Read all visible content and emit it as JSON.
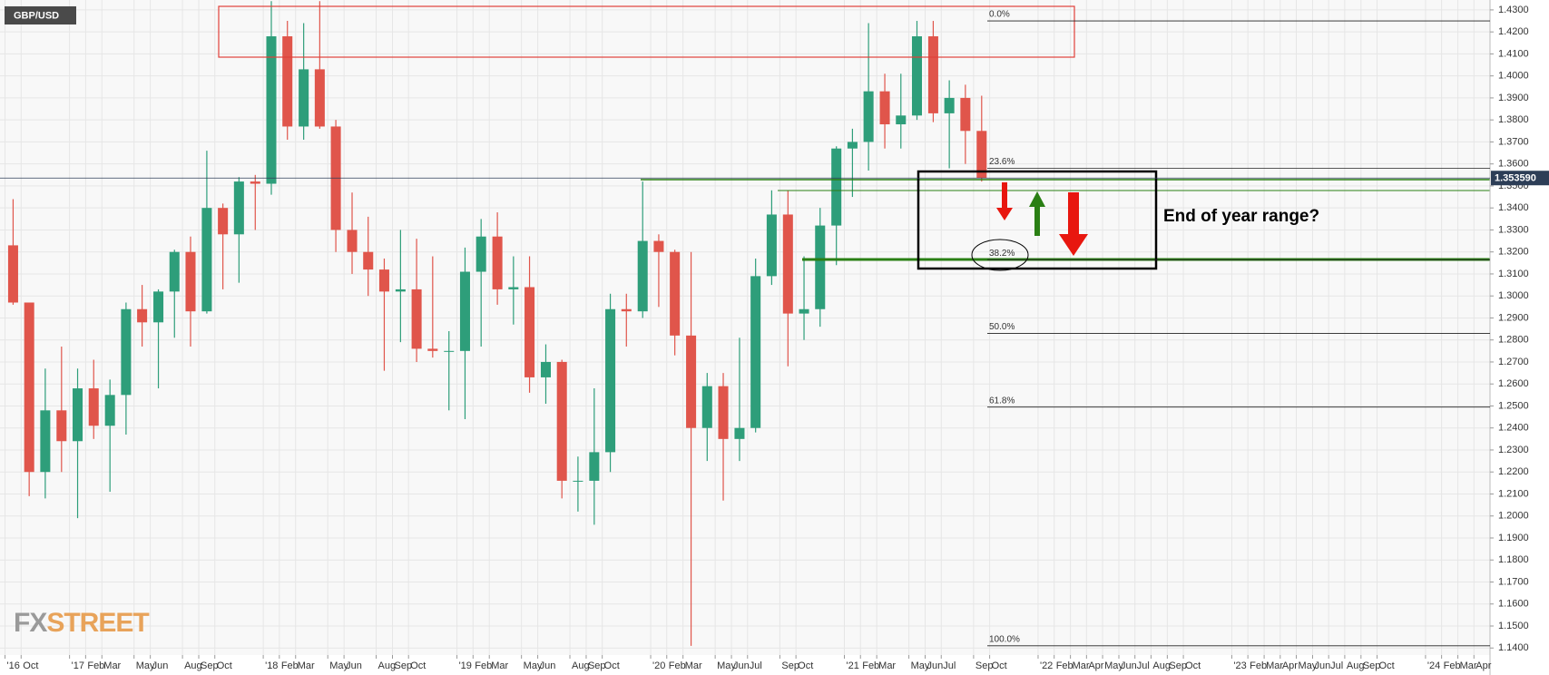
{
  "chart_data": {
    "type": "candlestick",
    "symbol": "GBP/USD",
    "annotation": "End of year range?",
    "logo": {
      "fx": "FX",
      "street": "STREET"
    },
    "up_color": "#2e9e7a",
    "down_color": "#e0554b",
    "grid": true,
    "xlim": [
      2016.641,
      2024.333
    ],
    "ylim": [
      1.1368,
      1.4345
    ],
    "x": [
      2016.667,
      2016.75,
      2016.833,
      2016.917,
      2017.0,
      2017.083,
      2017.167,
      2017.25,
      2017.333,
      2017.417,
      2017.5,
      2017.583,
      2017.667,
      2017.75,
      2017.833,
      2017.917,
      2018.0,
      2018.083,
      2018.167,
      2018.25,
      2018.333,
      2018.417,
      2018.5,
      2018.583,
      2018.667,
      2018.75,
      2018.833,
      2018.917,
      2019.0,
      2019.083,
      2019.167,
      2019.25,
      2019.333,
      2019.417,
      2019.5,
      2019.583,
      2019.667,
      2019.75,
      2019.833,
      2019.917,
      2020.0,
      2020.083,
      2020.167,
      2020.25,
      2020.333,
      2020.417,
      2020.5,
      2020.583,
      2020.667,
      2020.75,
      2020.833,
      2020.917,
      2021.0,
      2021.083,
      2021.167,
      2021.25,
      2021.333,
      2021.417,
      2021.5,
      2021.583,
      2021.667
    ],
    "open": [
      1.323,
      1.297,
      1.22,
      1.248,
      1.234,
      1.258,
      1.241,
      1.255,
      1.294,
      1.288,
      1.302,
      1.32,
      1.293,
      1.34,
      1.328,
      1.352,
      1.351,
      1.418,
      1.377,
      1.403,
      1.377,
      1.33,
      1.32,
      1.312,
      1.302,
      1.303,
      1.276,
      1.275,
      1.275,
      1.311,
      1.327,
      1.303,
      1.304,
      1.263,
      1.27,
      1.216,
      1.216,
      1.229,
      1.294,
      1.293,
      1.325,
      1.32,
      1.282,
      1.24,
      1.259,
      1.235,
      1.24,
      1.309,
      1.337,
      1.292,
      1.294,
      1.332,
      1.367,
      1.37,
      1.393,
      1.378,
      1.382,
      1.418,
      1.383,
      1.39,
      1.375
    ],
    "high": [
      1.344,
      1.297,
      1.267,
      1.277,
      1.267,
      1.271,
      1.262,
      1.297,
      1.305,
      1.303,
      1.321,
      1.327,
      1.366,
      1.342,
      1.354,
      1.355,
      1.434,
      1.425,
      1.424,
      1.434,
      1.38,
      1.347,
      1.336,
      1.317,
      1.33,
      1.326,
      1.318,
      1.284,
      1.322,
      1.335,
      1.338,
      1.318,
      1.318,
      1.278,
      1.271,
      1.227,
      1.258,
      1.301,
      1.301,
      1.352,
      1.328,
      1.321,
      1.32,
      1.265,
      1.265,
      1.281,
      1.317,
      1.348,
      1.348,
      1.318,
      1.34,
      1.368,
      1.376,
      1.424,
      1.401,
      1.401,
      1.425,
      1.425,
      1.398,
      1.396,
      1.391
    ],
    "low": [
      1.296,
      1.209,
      1.208,
      1.22,
      1.199,
      1.235,
      1.211,
      1.237,
      1.277,
      1.258,
      1.281,
      1.277,
      1.292,
      1.303,
      1.306,
      1.33,
      1.346,
      1.371,
      1.371,
      1.376,
      1.32,
      1.31,
      1.3,
      1.266,
      1.279,
      1.27,
      1.272,
      1.248,
      1.244,
      1.277,
      1.296,
      1.287,
      1.256,
      1.251,
      1.208,
      1.202,
      1.196,
      1.22,
      1.277,
      1.29,
      1.295,
      1.273,
      1.141,
      1.225,
      1.207,
      1.225,
      1.238,
      1.305,
      1.268,
      1.28,
      1.286,
      1.314,
      1.345,
      1.357,
      1.367,
      1.367,
      1.38,
      1.379,
      1.358,
      1.36,
      1.352
    ],
    "close": [
      1.297,
      1.22,
      1.248,
      1.234,
      1.258,
      1.241,
      1.255,
      1.294,
      1.288,
      1.302,
      1.32,
      1.293,
      1.34,
      1.328,
      1.352,
      1.351,
      1.418,
      1.377,
      1.403,
      1.377,
      1.33,
      1.32,
      1.312,
      1.302,
      1.303,
      1.276,
      1.275,
      1.275,
      1.311,
      1.327,
      1.303,
      1.304,
      1.263,
      1.27,
      1.216,
      1.216,
      1.229,
      1.294,
      1.293,
      1.325,
      1.32,
      1.282,
      1.24,
      1.259,
      1.235,
      1.24,
      1.309,
      1.337,
      1.292,
      1.294,
      1.332,
      1.367,
      1.37,
      1.393,
      1.378,
      1.382,
      1.418,
      1.383,
      1.39,
      1.375,
      1.35359
    ],
    "last_price": {
      "value": 1.35359,
      "label": "1.353590"
    },
    "fib_levels": [
      {
        "value": 1.425,
        "label": "0.0%"
      },
      {
        "value": 1.358,
        "label": "23.6%"
      },
      {
        "value": 1.3165,
        "label": "38.2%"
      },
      {
        "value": 1.283,
        "label": "50.0%"
      },
      {
        "value": 1.2495,
        "label": "61.8%"
      },
      {
        "value": 1.141,
        "label": "100.0%"
      }
    ],
    "yticks": [
      {
        "value": 1.43,
        "label": "1.4300"
      },
      {
        "value": 1.42,
        "label": "1.4200"
      },
      {
        "value": 1.41,
        "label": "1.4100"
      },
      {
        "value": 1.4,
        "label": "1.4000"
      },
      {
        "value": 1.39,
        "label": "1.3900"
      },
      {
        "value": 1.38,
        "label": "1.3800"
      },
      {
        "value": 1.37,
        "label": "1.3700"
      },
      {
        "value": 1.36,
        "label": "1.3600"
      },
      {
        "value": 1.35,
        "label": "1.3500"
      },
      {
        "value": 1.34,
        "label": "1.3400"
      },
      {
        "value": 1.33,
        "label": "1.3300"
      },
      {
        "value": 1.32,
        "label": "1.3200"
      },
      {
        "value": 1.31,
        "label": "1.3100"
      },
      {
        "value": 1.3,
        "label": "1.3000"
      },
      {
        "value": 1.29,
        "label": "1.2900"
      },
      {
        "value": 1.28,
        "label": "1.2800"
      },
      {
        "value": 1.27,
        "label": "1.2700"
      },
      {
        "value": 1.26,
        "label": "1.2600"
      },
      {
        "value": 1.25,
        "label": "1.2500"
      },
      {
        "value": 1.24,
        "label": "1.2400"
      },
      {
        "value": 1.23,
        "label": "1.2300"
      },
      {
        "value": 1.22,
        "label": "1.2200"
      },
      {
        "value": 1.21,
        "label": "1.2100"
      },
      {
        "value": 1.2,
        "label": "1.2000"
      },
      {
        "value": 1.19,
        "label": "1.1900"
      },
      {
        "value": 1.18,
        "label": "1.1800"
      },
      {
        "value": 1.17,
        "label": "1.1700"
      },
      {
        "value": 1.16,
        "label": "1.1600"
      },
      {
        "value": 1.15,
        "label": "1.1500"
      },
      {
        "value": 1.14,
        "label": "1.1400"
      }
    ],
    "xticks": [
      {
        "value": 2016.667,
        "label": "'16"
      },
      {
        "value": 2016.75,
        "label": "Oct"
      },
      {
        "value": 2017.0,
        "label": "'17"
      },
      {
        "value": 2017.083,
        "label": "Feb"
      },
      {
        "value": 2017.167,
        "label": "Mar"
      },
      {
        "value": 2017.333,
        "label": "May"
      },
      {
        "value": 2017.417,
        "label": "Jun"
      },
      {
        "value": 2017.583,
        "label": "Aug"
      },
      {
        "value": 2017.667,
        "label": "Sep"
      },
      {
        "value": 2017.75,
        "label": "Oct"
      },
      {
        "value": 2018.0,
        "label": "'18"
      },
      {
        "value": 2018.083,
        "label": "Feb"
      },
      {
        "value": 2018.167,
        "label": "Mar"
      },
      {
        "value": 2018.333,
        "label": "May"
      },
      {
        "value": 2018.417,
        "label": "Jun"
      },
      {
        "value": 2018.583,
        "label": "Aug"
      },
      {
        "value": 2018.667,
        "label": "Sep"
      },
      {
        "value": 2018.75,
        "label": "Oct"
      },
      {
        "value": 2019.0,
        "label": "'19"
      },
      {
        "value": 2019.083,
        "label": "Feb"
      },
      {
        "value": 2019.167,
        "label": "Mar"
      },
      {
        "value": 2019.333,
        "label": "May"
      },
      {
        "value": 2019.417,
        "label": "Jun"
      },
      {
        "value": 2019.583,
        "label": "Aug"
      },
      {
        "value": 2019.667,
        "label": "Sep"
      },
      {
        "value": 2019.75,
        "label": "Oct"
      },
      {
        "value": 2020.0,
        "label": "'20"
      },
      {
        "value": 2020.083,
        "label": "Feb"
      },
      {
        "value": 2020.167,
        "label": "Mar"
      },
      {
        "value": 2020.333,
        "label": "May"
      },
      {
        "value": 2020.417,
        "label": "Jun"
      },
      {
        "value": 2020.5,
        "label": "Jul"
      },
      {
        "value": 2020.667,
        "label": "Sep"
      },
      {
        "value": 2020.75,
        "label": "Oct"
      },
      {
        "value": 2021.0,
        "label": "'21"
      },
      {
        "value": 2021.083,
        "label": "Feb"
      },
      {
        "value": 2021.167,
        "label": "Mar"
      },
      {
        "value": 2021.333,
        "label": "May"
      },
      {
        "value": 2021.417,
        "label": "Jun"
      },
      {
        "value": 2021.5,
        "label": "Jul"
      },
      {
        "value": 2021.667,
        "label": "Sep"
      },
      {
        "value": 2021.75,
        "label": "Oct"
      },
      {
        "value": 2022.0,
        "label": "'22"
      },
      {
        "value": 2022.083,
        "label": "Feb"
      },
      {
        "value": 2022.167,
        "label": "Mar"
      },
      {
        "value": 2022.25,
        "label": "Apr"
      },
      {
        "value": 2022.333,
        "label": "May"
      },
      {
        "value": 2022.417,
        "label": "Jun"
      },
      {
        "value": 2022.5,
        "label": "Jul"
      },
      {
        "value": 2022.583,
        "label": "Aug"
      },
      {
        "value": 2022.667,
        "label": "Sep"
      },
      {
        "value": 2022.75,
        "label": "Oct"
      },
      {
        "value": 2023.0,
        "label": "'23"
      },
      {
        "value": 2023.083,
        "label": "Feb"
      },
      {
        "value": 2023.167,
        "label": "Mar"
      },
      {
        "value": 2023.25,
        "label": "Apr"
      },
      {
        "value": 2023.333,
        "label": "May"
      },
      {
        "value": 2023.417,
        "label": "Jun"
      },
      {
        "value": 2023.5,
        "label": "Jul"
      },
      {
        "value": 2023.583,
        "label": "Aug"
      },
      {
        "value": 2023.667,
        "label": "Sep"
      },
      {
        "value": 2023.75,
        "label": "Oct"
      },
      {
        "value": 2024.0,
        "label": "'24"
      },
      {
        "value": 2024.083,
        "label": "Feb"
      },
      {
        "value": 2024.167,
        "label": "Mar"
      },
      {
        "value": 2024.25,
        "label": "Apr"
      }
    ]
  }
}
